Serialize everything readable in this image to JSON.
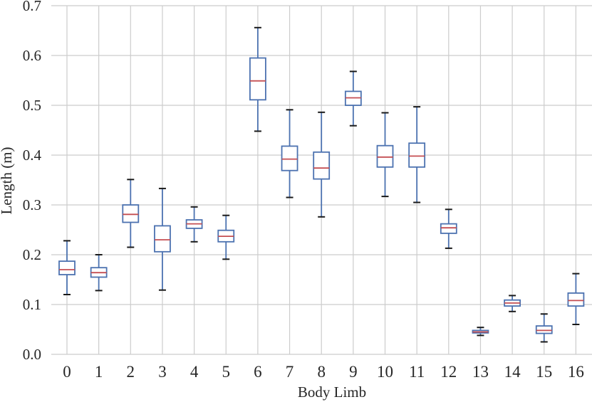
{
  "chart_data": {
    "type": "box",
    "title": "",
    "xlabel": "Body Limb",
    "ylabel": "Length (m)",
    "ylim": [
      0,
      0.7
    ],
    "yticks": [
      "0.0",
      "0.1",
      "0.2",
      "0.3",
      "0.4",
      "0.5",
      "0.6",
      "0.7"
    ],
    "grid": true,
    "colors": {
      "box": "#4c72b0",
      "median": "#c44e52",
      "whisker_cap": "#1a1a1a",
      "grid": "#cccccc"
    },
    "categories": [
      "0",
      "1",
      "2",
      "3",
      "4",
      "5",
      "6",
      "7",
      "8",
      "9",
      "10",
      "11",
      "12",
      "13",
      "14",
      "15",
      "16"
    ],
    "boxes": [
      {
        "whisker_low": 0.12,
        "q1": 0.16,
        "median": 0.17,
        "q3": 0.187,
        "whisker_high": 0.228
      },
      {
        "whisker_low": 0.128,
        "q1": 0.155,
        "median": 0.164,
        "q3": 0.174,
        "whisker_high": 0.2
      },
      {
        "whisker_low": 0.215,
        "q1": 0.265,
        "median": 0.281,
        "q3": 0.3,
        "whisker_high": 0.351
      },
      {
        "whisker_low": 0.129,
        "q1": 0.206,
        "median": 0.23,
        "q3": 0.258,
        "whisker_high": 0.333
      },
      {
        "whisker_low": 0.226,
        "q1": 0.253,
        "median": 0.262,
        "q3": 0.27,
        "whisker_high": 0.296
      },
      {
        "whisker_low": 0.191,
        "q1": 0.226,
        "median": 0.237,
        "q3": 0.249,
        "whisker_high": 0.279
      },
      {
        "whisker_low": 0.448,
        "q1": 0.511,
        "median": 0.549,
        "q3": 0.595,
        "whisker_high": 0.656
      },
      {
        "whisker_low": 0.315,
        "q1": 0.369,
        "median": 0.392,
        "q3": 0.418,
        "whisker_high": 0.491
      },
      {
        "whisker_low": 0.276,
        "q1": 0.352,
        "median": 0.374,
        "q3": 0.406,
        "whisker_high": 0.486
      },
      {
        "whisker_low": 0.459,
        "q1": 0.5,
        "median": 0.515,
        "q3": 0.528,
        "whisker_high": 0.568
      },
      {
        "whisker_low": 0.317,
        "q1": 0.376,
        "median": 0.396,
        "q3": 0.419,
        "whisker_high": 0.485
      },
      {
        "whisker_low": 0.305,
        "q1": 0.376,
        "median": 0.398,
        "q3": 0.424,
        "whisker_high": 0.497
      },
      {
        "whisker_low": 0.213,
        "q1": 0.243,
        "median": 0.254,
        "q3": 0.262,
        "whisker_high": 0.291
      },
      {
        "whisker_low": 0.038,
        "q1": 0.043,
        "median": 0.045,
        "q3": 0.048,
        "whisker_high": 0.054
      },
      {
        "whisker_low": 0.086,
        "q1": 0.097,
        "median": 0.103,
        "q3": 0.109,
        "whisker_high": 0.118
      },
      {
        "whisker_low": 0.025,
        "q1": 0.042,
        "median": 0.048,
        "q3": 0.057,
        "whisker_high": 0.081
      },
      {
        "whisker_low": 0.06,
        "q1": 0.097,
        "median": 0.108,
        "q3": 0.123,
        "whisker_high": 0.162
      }
    ]
  }
}
